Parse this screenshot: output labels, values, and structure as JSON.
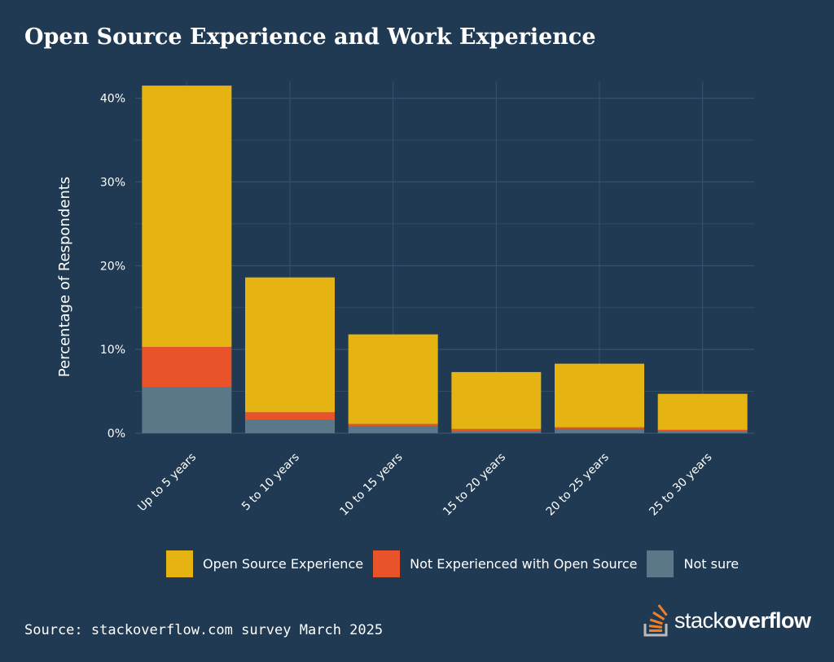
{
  "page": {
    "title": "Open Source Experience and Work Experience",
    "source": "Source: stackoverflow.com survey March 2025",
    "logo": {
      "word1": "stack",
      "word2": "overflow",
      "icon": "stackoverflow-icon"
    }
  },
  "colors": {
    "background": "#1f3a52",
    "open_source": "#e6b412",
    "not_experienced": "#e8532a",
    "not_sure": "#5a7887",
    "grid": "#34506a",
    "text": "#ffffff",
    "accent": "#f48024"
  },
  "chart_data": {
    "type": "bar",
    "stacked": true,
    "title": "Open Source Experience and Work Experience",
    "xlabel": "",
    "ylabel": "Percentage of Respondents",
    "ylim": [
      0,
      42
    ],
    "yticks": [
      0,
      10,
      20,
      30,
      40
    ],
    "ytick_labels": [
      "0%",
      "10%",
      "20%",
      "30%",
      "40%"
    ],
    "grid": true,
    "legend_position": "bottom",
    "categories": [
      "Up to 5 years",
      "5 to 10 years",
      "10 to 15 years",
      "15 to 20 years",
      "20 to 25 years",
      "25 to 30 years"
    ],
    "series": [
      {
        "name": "Not sure",
        "color": "#5a7887",
        "values": [
          5.5,
          1.6,
          0.8,
          0.2,
          0.5,
          0.2
        ]
      },
      {
        "name": "Not Experienced with Open Source",
        "color": "#e8532a",
        "values": [
          4.8,
          0.9,
          0.3,
          0.3,
          0.2,
          0.2
        ]
      },
      {
        "name": "Open Source Experience",
        "color": "#e6b412",
        "values": [
          31.2,
          16.1,
          10.7,
          6.8,
          7.6,
          4.3
        ]
      }
    ],
    "legend": [
      "Open Source Experience",
      "Not Experienced with Open Source",
      "Not sure"
    ]
  }
}
